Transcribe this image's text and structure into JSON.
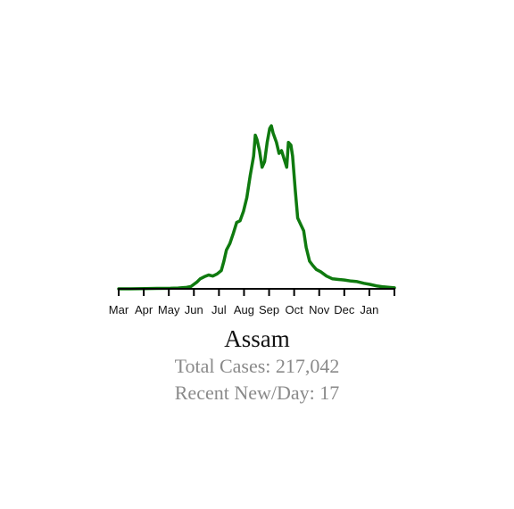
{
  "chart_data": {
    "type": "line",
    "title": "Assam",
    "xlabel": "",
    "ylabel": "",
    "grid": false,
    "line_color": "#0f7a0f",
    "tick_labels": [
      "Mar",
      "Apr",
      "May",
      "Jun",
      "Jul",
      "Aug",
      "Sep",
      "Oct",
      "Nov",
      "Dec",
      "Jan"
    ],
    "x_range": [
      "2020-03-01",
      "2021-01-20"
    ],
    "y_range": [
      0,
      3000
    ],
    "x_unit": "date",
    "y_unit": "new cases per day",
    "series": [
      {
        "points": [
          [
            "2020-03-01",
            0
          ],
          [
            "2020-03-15",
            0
          ],
          [
            "2020-04-01",
            5
          ],
          [
            "2020-04-15",
            8
          ],
          [
            "2020-05-01",
            10
          ],
          [
            "2020-05-10",
            15
          ],
          [
            "2020-05-20",
            25
          ],
          [
            "2020-05-25",
            40
          ],
          [
            "2020-06-01",
            120
          ],
          [
            "2020-06-05",
            180
          ],
          [
            "2020-06-10",
            220
          ],
          [
            "2020-06-15",
            250
          ],
          [
            "2020-06-20",
            230
          ],
          [
            "2020-06-25",
            270
          ],
          [
            "2020-06-30",
            330
          ],
          [
            "2020-07-03",
            500
          ],
          [
            "2020-07-06",
            700
          ],
          [
            "2020-07-10",
            820
          ],
          [
            "2020-07-14",
            1000
          ],
          [
            "2020-07-18",
            1200
          ],
          [
            "2020-07-22",
            1230
          ],
          [
            "2020-07-26",
            1400
          ],
          [
            "2020-07-30",
            1650
          ],
          [
            "2020-08-03",
            2050
          ],
          [
            "2020-08-07",
            2400
          ],
          [
            "2020-08-09",
            2780
          ],
          [
            "2020-08-11",
            2700
          ],
          [
            "2020-08-14",
            2500
          ],
          [
            "2020-08-17",
            2200
          ],
          [
            "2020-08-20",
            2300
          ],
          [
            "2020-08-23",
            2650
          ],
          [
            "2020-08-26",
            2900
          ],
          [
            "2020-08-28",
            2950
          ],
          [
            "2020-08-30",
            2820
          ],
          [
            "2020-09-03",
            2650
          ],
          [
            "2020-09-06",
            2450
          ],
          [
            "2020-09-09",
            2500
          ],
          [
            "2020-09-12",
            2350
          ],
          [
            "2020-09-15",
            2200
          ],
          [
            "2020-09-17",
            2650
          ],
          [
            "2020-09-20",
            2600
          ],
          [
            "2020-09-22",
            2400
          ],
          [
            "2020-09-25",
            1800
          ],
          [
            "2020-09-28",
            1280
          ],
          [
            "2020-10-02",
            1150
          ],
          [
            "2020-10-05",
            1050
          ],
          [
            "2020-10-08",
            750
          ],
          [
            "2020-10-12",
            500
          ],
          [
            "2020-10-16",
            420
          ],
          [
            "2020-10-20",
            350
          ],
          [
            "2020-10-25",
            310
          ],
          [
            "2020-11-01",
            230
          ],
          [
            "2020-11-08",
            180
          ],
          [
            "2020-11-15",
            170
          ],
          [
            "2020-11-22",
            160
          ],
          [
            "2020-11-30",
            140
          ],
          [
            "2020-12-07",
            130
          ],
          [
            "2020-12-15",
            100
          ],
          [
            "2020-12-22",
            80
          ],
          [
            "2020-12-31",
            50
          ],
          [
            "2021-01-07",
            35
          ],
          [
            "2021-01-14",
            25
          ],
          [
            "2021-01-20",
            17
          ]
        ]
      }
    ]
  },
  "region": {
    "name": "Assam",
    "total_cases_text": "Total Cases: 217,042",
    "recent_new_per_day_text": "Recent New/Day: 17"
  }
}
